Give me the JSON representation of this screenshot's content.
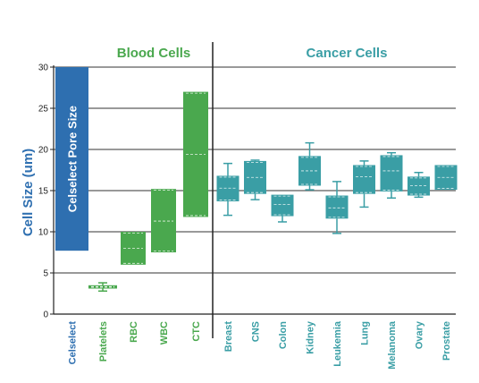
{
  "chart_data": {
    "type": "bar",
    "title": "",
    "ylabel": "Cell Size (um)",
    "xlabel": "",
    "ylim": [
      0,
      30
    ],
    "yticks": [
      0,
      5,
      10,
      15,
      20,
      25,
      30
    ],
    "grid": true,
    "groups": [
      {
        "label": "Blood Cells",
        "color": "#4aa84e"
      },
      {
        "label": "Cancer Cells",
        "color": "#3a9ea5"
      }
    ],
    "colors": {
      "celselect": "#2e6fb0",
      "blood": "#4aa84e",
      "cancer": "#3a9ea5",
      "axis": "#222222"
    },
    "celselect": {
      "category": "Celselect",
      "bar_label": "Celselect Pore Size",
      "low": 7.7,
      "high": 30
    },
    "blood_cells": [
      {
        "category": "Platelets",
        "low": 2.8,
        "q1": 3.1,
        "median": 3.3,
        "q3": 3.5,
        "high": 3.8
      },
      {
        "category": "RBC",
        "low": 6.0,
        "q1": 6.0,
        "median": 8.0,
        "q3": 10.0,
        "high": 10.0
      },
      {
        "category": "WBC",
        "low": 7.5,
        "q1": 7.5,
        "median": 11.3,
        "q3": 15.2,
        "high": 15.2
      },
      {
        "category": "CTC",
        "low": 11.8,
        "q1": 11.8,
        "median": 19.4,
        "q3": 27.0,
        "high": 27.0
      }
    ],
    "cancer_cells": [
      {
        "category": "Breast",
        "low": 12.0,
        "q1": 13.7,
        "median": 15.3,
        "q3": 16.8,
        "high": 18.3
      },
      {
        "category": "CNS",
        "low": 13.9,
        "q1": 14.6,
        "median": 16.6,
        "q3": 18.6,
        "high": 18.7
      },
      {
        "category": "Colon",
        "low": 11.2,
        "q1": 11.9,
        "median": 13.3,
        "q3": 14.5,
        "high": 14.5
      },
      {
        "category": "Kidney",
        "low": 15.1,
        "q1": 15.6,
        "median": 17.4,
        "q3": 19.2,
        "high": 20.8
      },
      {
        "category": "Leukemia",
        "low": 9.8,
        "q1": 11.6,
        "median": 12.9,
        "q3": 14.4,
        "high": 16.1
      },
      {
        "category": "Lung",
        "low": 13.0,
        "q1": 14.6,
        "median": 16.7,
        "q3": 18.1,
        "high": 18.6
      },
      {
        "category": "Melanoma",
        "low": 14.1,
        "q1": 14.9,
        "median": 17.4,
        "q3": 19.3,
        "high": 19.6
      },
      {
        "category": "Ovary",
        "low": 14.2,
        "q1": 14.4,
        "median": 15.6,
        "q3": 16.7,
        "high": 17.2
      },
      {
        "category": "Prostate",
        "low": 15.1,
        "q1": 15.1,
        "median": 16.6,
        "q3": 18.1,
        "high": 18.1
      }
    ]
  }
}
